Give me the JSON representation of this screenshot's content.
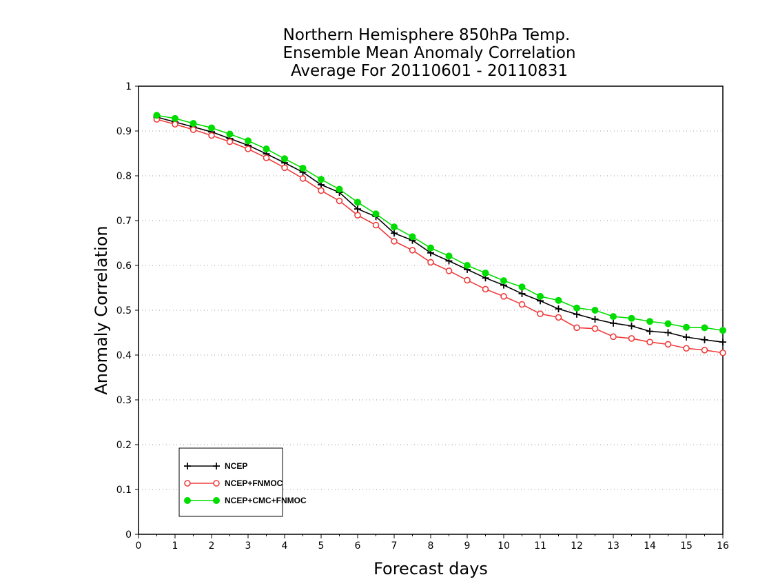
{
  "chart_data": {
    "type": "line",
    "title_lines": [
      "Northern Hemisphere 850hPa Temp.",
      "Ensemble Mean Anomaly Correlation",
      "Average For 20110601 - 20110831"
    ],
    "xlabel": "Forecast days",
    "ylabel": "Anomaly Correlation",
    "xlim": [
      0,
      16
    ],
    "ylim": [
      0,
      1
    ],
    "x_ticks": [
      0,
      1,
      2,
      3,
      4,
      5,
      6,
      7,
      8,
      9,
      10,
      11,
      12,
      13,
      14,
      15,
      16
    ],
    "y_ticks": [
      0,
      0.1,
      0.2,
      0.3,
      0.4,
      0.5,
      0.6,
      0.7,
      0.8,
      0.9,
      1
    ],
    "y_tick_labels": [
      "0",
      "0.1",
      "0.2",
      "0.3",
      "0.4",
      "0.5",
      "0.6",
      "0.7",
      "0.8",
      "0.9",
      "1"
    ],
    "grid": "horizontal dotted",
    "legend_position": "bottom-left",
    "x": [
      0.5,
      1,
      1.5,
      2,
      2.5,
      3,
      3.5,
      4,
      4.5,
      5,
      5.5,
      6,
      6.5,
      7,
      7.5,
      8,
      8.5,
      9,
      9.5,
      10,
      10.5,
      11,
      11.5,
      12,
      12.5,
      13,
      13.5,
      14,
      14.5,
      15,
      15.5,
      16
    ],
    "series": [
      {
        "name": "NCEP",
        "color": "#000000",
        "marker": "plus",
        "values": [
          0.931,
          0.92,
          0.909,
          0.898,
          0.883,
          0.868,
          0.849,
          0.829,
          0.808,
          0.78,
          0.763,
          0.726,
          0.709,
          0.672,
          0.656,
          0.628,
          0.61,
          0.591,
          0.572,
          0.556,
          0.537,
          0.521,
          0.503,
          0.491,
          0.48,
          0.471,
          0.465,
          0.453,
          0.45,
          0.44,
          0.434,
          0.429
        ]
      },
      {
        "name": "NCEP+FNMOC",
        "color": "#ee3b3b",
        "marker": "open-circle",
        "values": [
          0.926,
          0.915,
          0.903,
          0.89,
          0.876,
          0.86,
          0.84,
          0.818,
          0.794,
          0.767,
          0.744,
          0.712,
          0.69,
          0.654,
          0.634,
          0.607,
          0.588,
          0.567,
          0.547,
          0.531,
          0.513,
          0.492,
          0.484,
          0.461,
          0.459,
          0.441,
          0.437,
          0.429,
          0.424,
          0.415,
          0.411,
          0.405
        ]
      },
      {
        "name": "NCEP+CMC+FNMOC",
        "color": "#00dd00",
        "marker": "filled-circle",
        "values": [
          0.935,
          0.928,
          0.917,
          0.907,
          0.893,
          0.878,
          0.86,
          0.838,
          0.817,
          0.792,
          0.77,
          0.741,
          0.715,
          0.686,
          0.664,
          0.639,
          0.621,
          0.6,
          0.583,
          0.566,
          0.552,
          0.531,
          0.522,
          0.505,
          0.5,
          0.486,
          0.482,
          0.475,
          0.47,
          0.462,
          0.461,
          0.455
        ]
      }
    ]
  }
}
